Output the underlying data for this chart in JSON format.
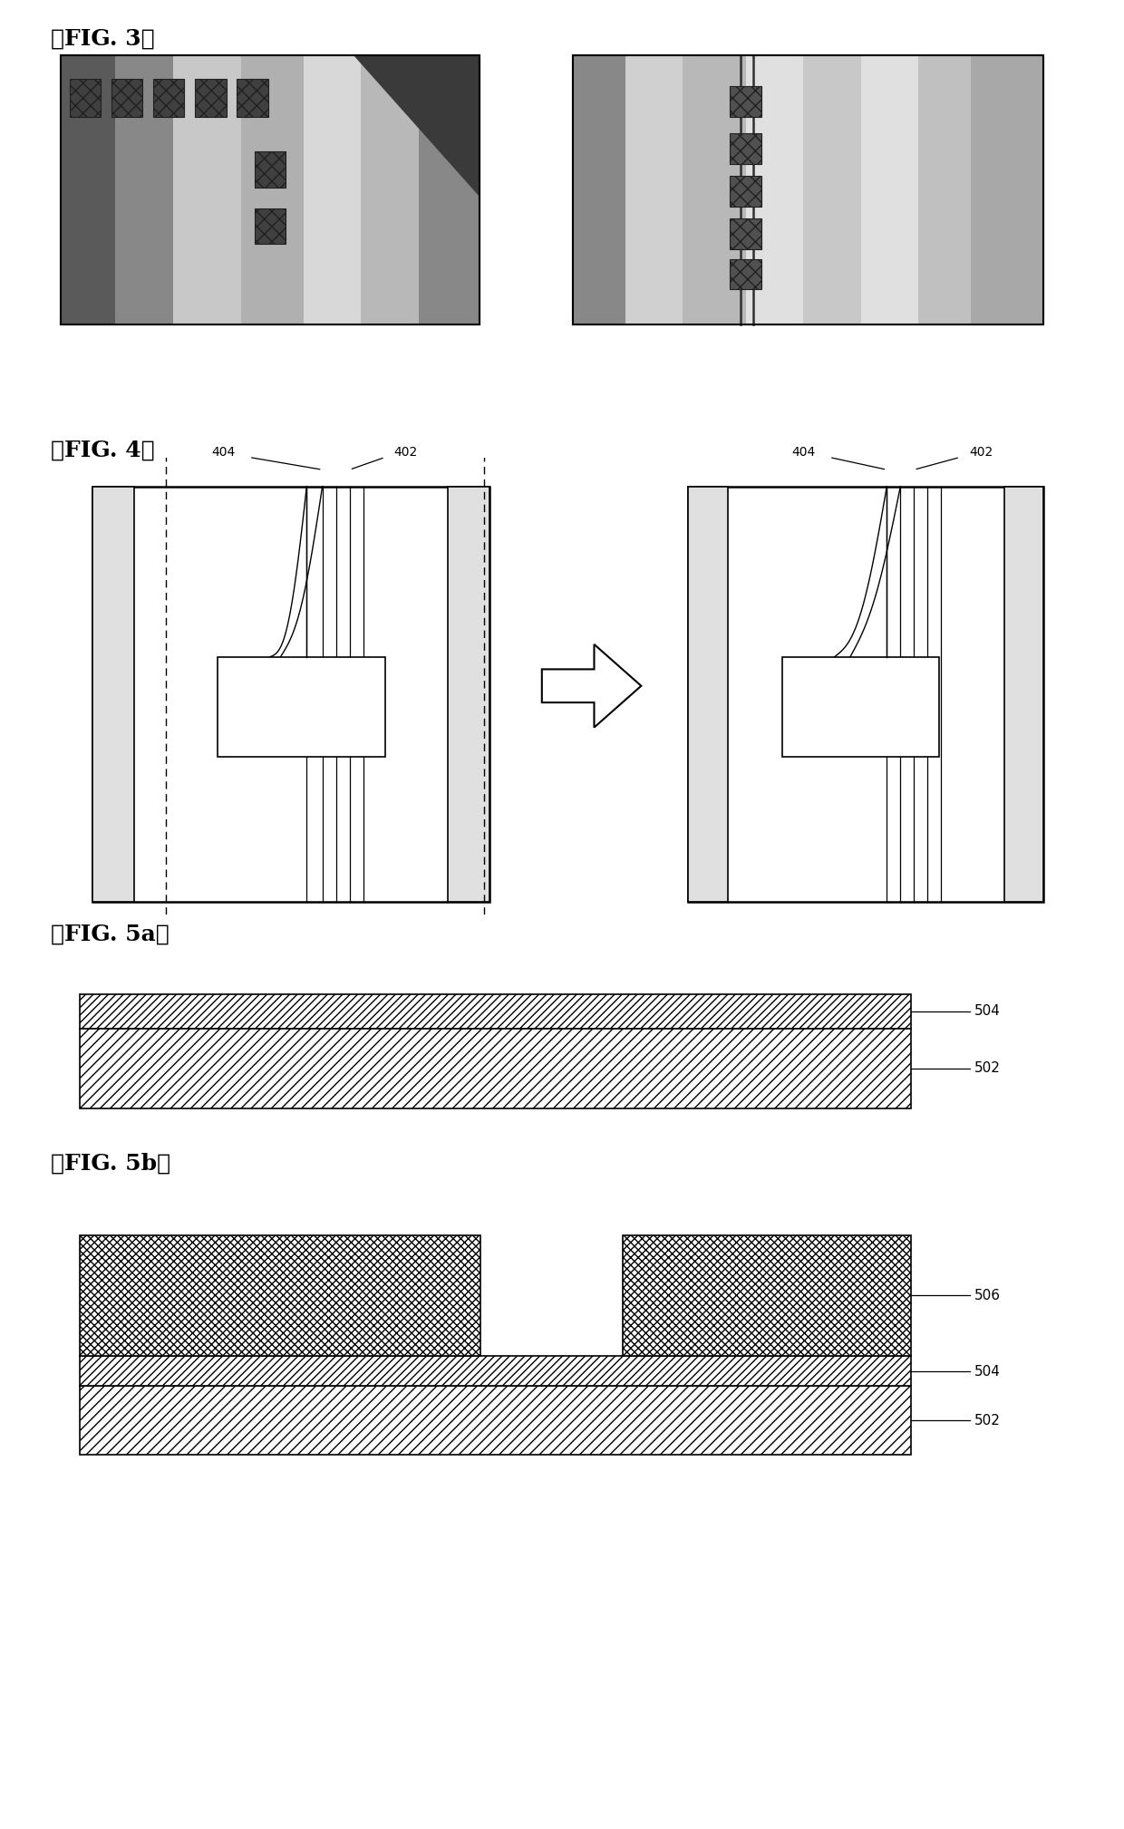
{
  "fig3_label": "』FIG. 3』",
  "fig4_label": "』FIG. 4』",
  "fig5a_label": "』FIG. 5a』",
  "fig5b_label": "』FIG. 5b』",
  "label_404": "404",
  "label_402": "402",
  "label_504": "504",
  "label_502": "502",
  "label_506": "506",
  "bg_color": "#ffffff"
}
